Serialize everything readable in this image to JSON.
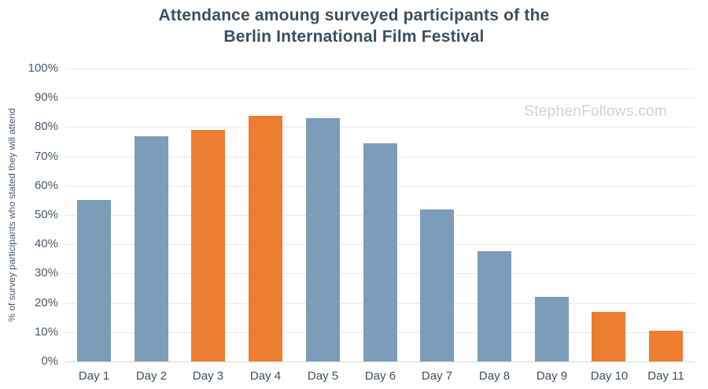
{
  "watermark": {
    "text": "StephenFollows.com"
  },
  "chart_data": {
    "type": "bar",
    "title": "Attendance amoung surveyed participants of the Berlin International Film Festival",
    "title_lines": [
      "Attendance amoung surveyed participants of the",
      "Berlin International Film Festival"
    ],
    "ylabel": "% of survey participants who stated they will attend",
    "xlabel": "",
    "categories": [
      "Day 1",
      "Day 2",
      "Day 3",
      "Day 4",
      "Day 5",
      "Day 6",
      "Day 7",
      "Day 8",
      "Day 9",
      "Day 10",
      "Day 11"
    ],
    "values": [
      55,
      77,
      79,
      84,
      83,
      74.5,
      52,
      37.5,
      22,
      17,
      10.5
    ],
    "bar_colors": [
      "#7B9DBA",
      "#7B9DBA",
      "#ED7D31",
      "#ED7D31",
      "#7B9DBA",
      "#7B9DBA",
      "#7B9DBA",
      "#7B9DBA",
      "#7B9DBA",
      "#ED7D31",
      "#ED7D31"
    ],
    "palette": {
      "default_bar": "#7B9DBA",
      "highlight_bar": "#ED7D31"
    },
    "ylim": [
      0,
      100
    ],
    "ytick_step": 10,
    "ytick_labels": [
      "0%",
      "10%",
      "20%",
      "30%",
      "40%",
      "50%",
      "60%",
      "70%",
      "80%",
      "90%",
      "100%"
    ],
    "grid": true,
    "legend": false
  }
}
